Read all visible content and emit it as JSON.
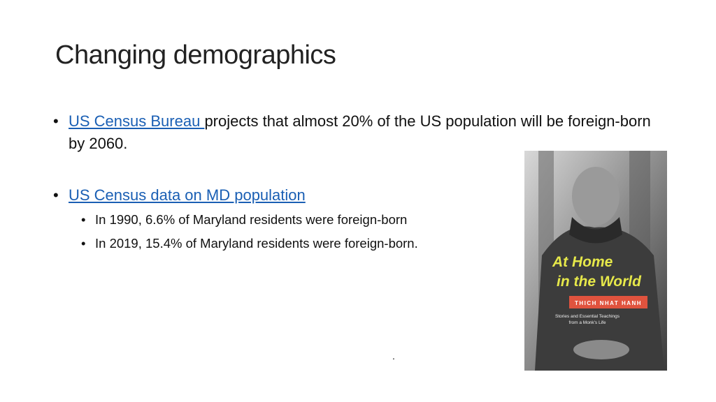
{
  "slide": {
    "title": "Changing demographics",
    "bullets": [
      {
        "link": "US Census Bureau ",
        "text": "projects that almost 20% of the US population will be foreign-born by 2060."
      },
      {
        "link": "US Census data on MD population",
        "sub_bullets": [
          "In 1990, 6.6% of Maryland residents were foreign-born",
          "In 2019, 15.4% of Maryland residents were foreign-born."
        ]
      }
    ],
    "image": {
      "title_lines": [
        "At Home",
        "in the World"
      ],
      "author": "THICH NHAT HANH",
      "subtitle_lines": [
        "Stories and Essential Teachings",
        "from a Monk's Life"
      ]
    },
    "footnote": "."
  }
}
